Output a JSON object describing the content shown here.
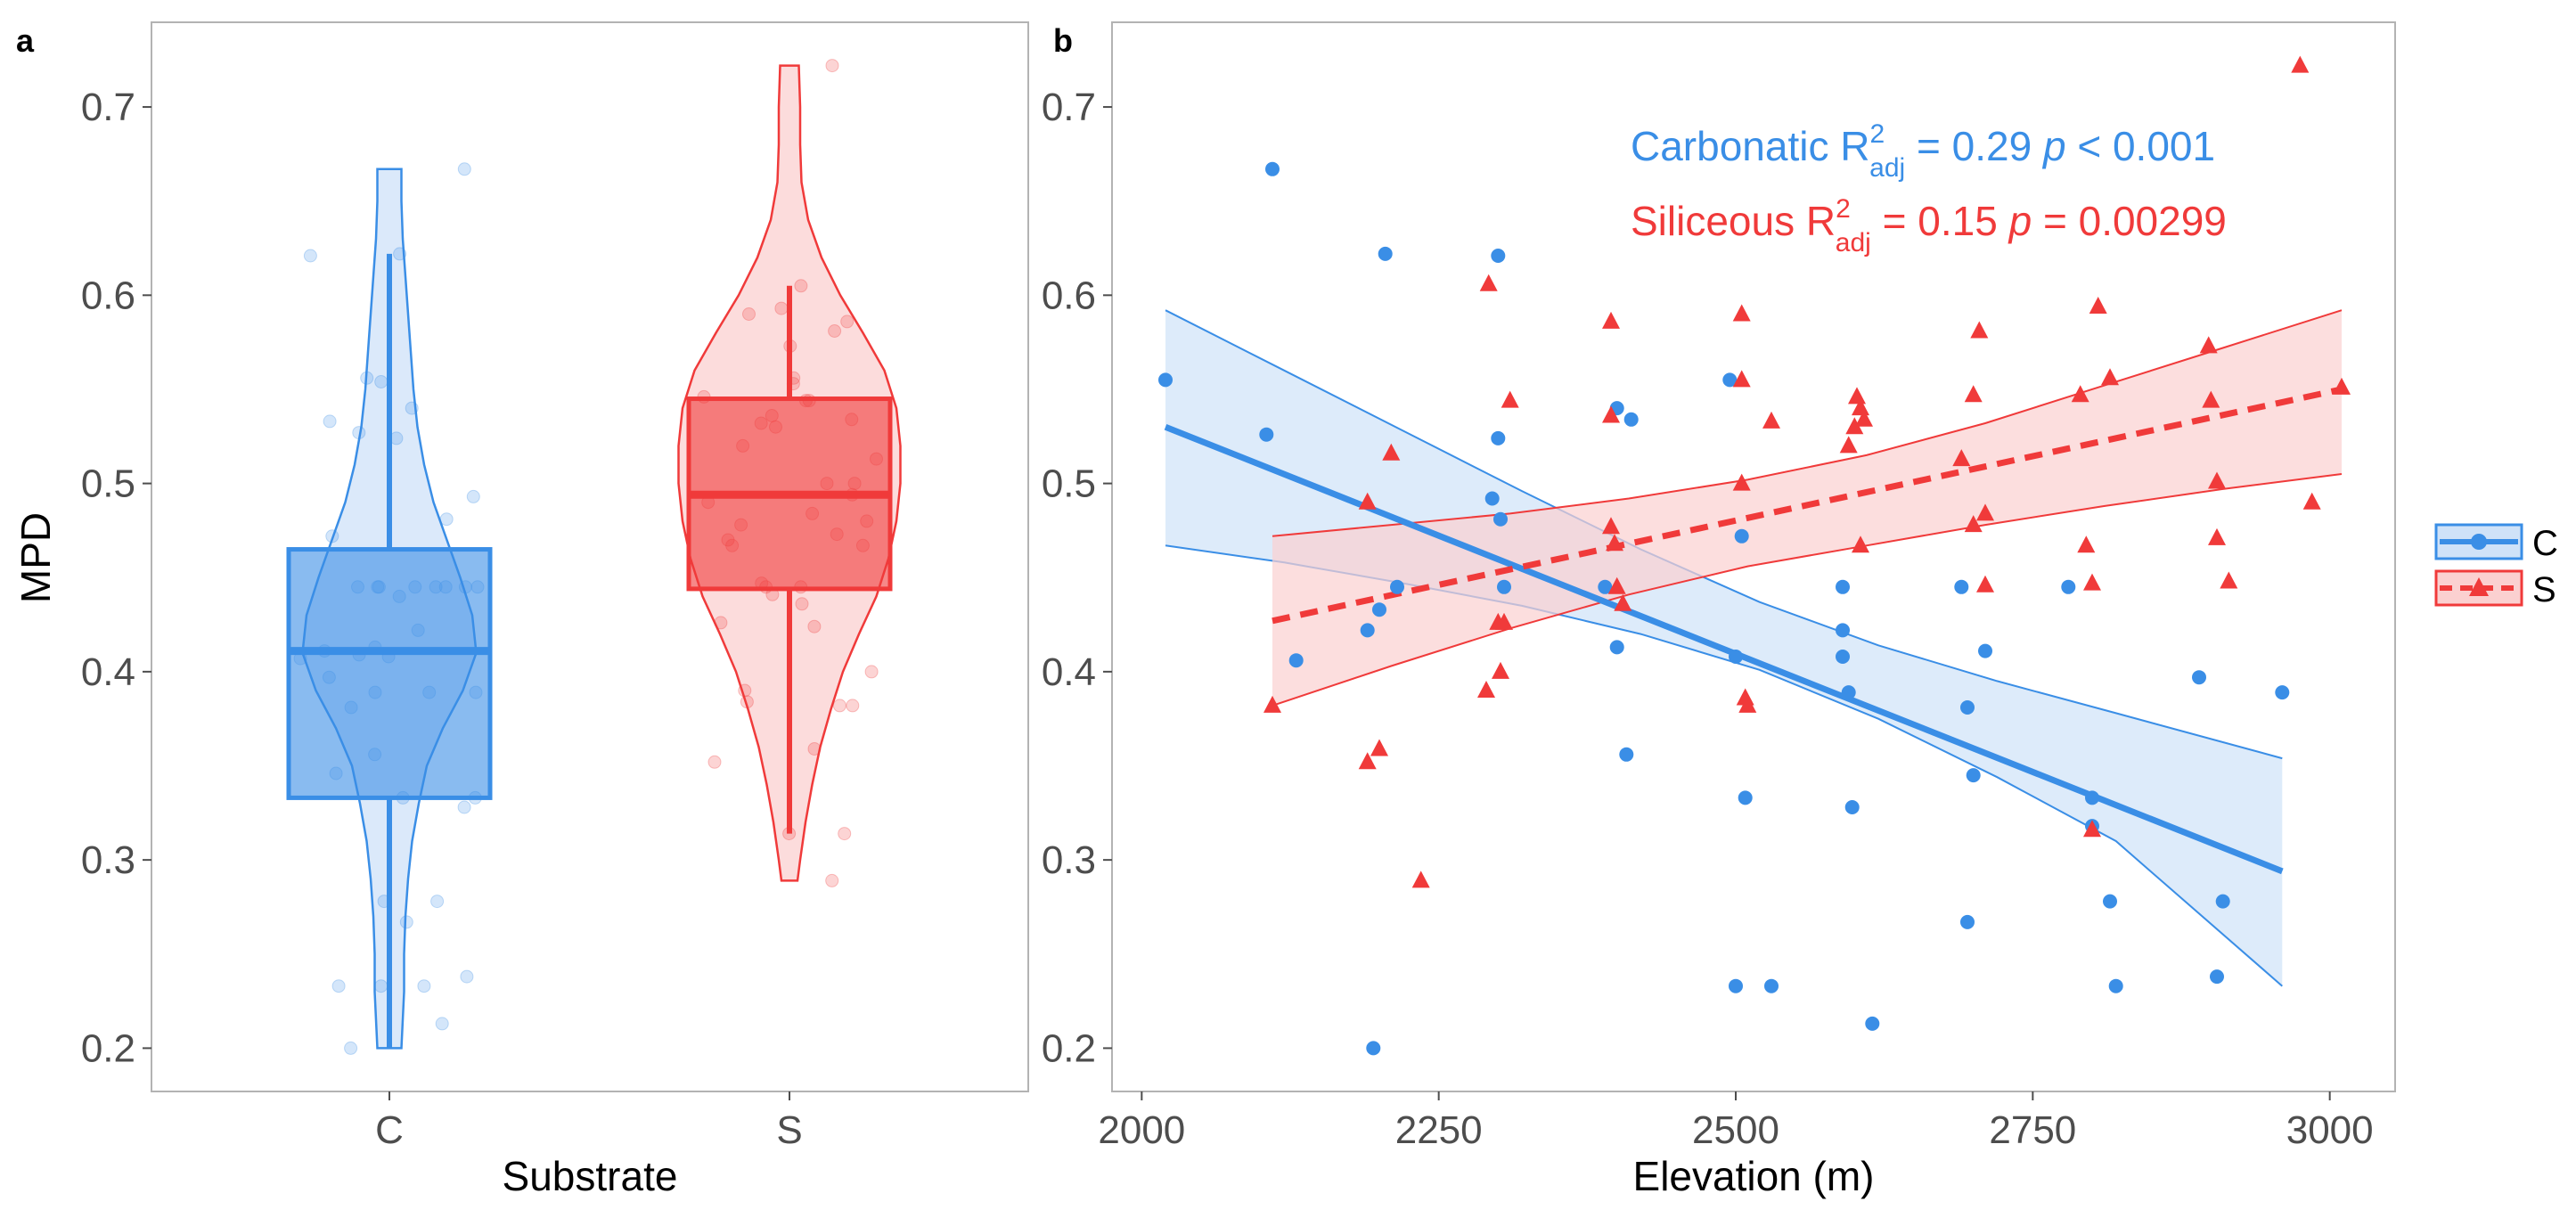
{
  "colors": {
    "C": "#3a8ee6",
    "S": "#f03a3a",
    "C_fill": "#cfe2f8",
    "S_fill": "#fbd0d0"
  },
  "chart_data": [
    {
      "panel": "a",
      "type": "violin+box",
      "xlabel": "Substrate",
      "ylabel": "MPD",
      "categories": [
        "C",
        "S"
      ],
      "ylim": [
        0.177,
        0.745
      ],
      "yticks": [
        "0.2",
        "0.3",
        "0.4",
        "0.5",
        "0.6",
        "0.7"
      ],
      "grid": false,
      "groups": [
        {
          "name": "C",
          "min": 0.2,
          "q1": 0.333,
          "median": 0.411,
          "q3": 0.465,
          "max": 0.622,
          "violin": {
            "y": [
              0.2,
              0.215,
              0.23,
              0.25,
              0.27,
              0.29,
              0.31,
              0.33,
              0.35,
              0.37,
              0.39,
              0.41,
              0.43,
              0.45,
              0.47,
              0.49,
              0.51,
              0.53,
              0.55,
              0.57,
              0.59,
              0.61,
              0.63,
              0.65,
              0.667
            ],
            "halfwidth": [
              0.09,
              0.1,
              0.11,
              0.11,
              0.12,
              0.14,
              0.17,
              0.22,
              0.28,
              0.4,
              0.55,
              0.65,
              0.62,
              0.53,
              0.43,
              0.33,
              0.26,
              0.21,
              0.18,
              0.16,
              0.14,
              0.12,
              0.1,
              0.09,
              0.09
            ]
          },
          "points": [
            0.667,
            0.621,
            0.622,
            0.556,
            0.554,
            0.54,
            0.533,
            0.527,
            0.524,
            0.493,
            0.481,
            0.472,
            0.445,
            0.445,
            0.445,
            0.445,
            0.445,
            0.445,
            0.445,
            0.445,
            0.44,
            0.422,
            0.413,
            0.411,
            0.409,
            0.408,
            0.407,
            0.397,
            0.389,
            0.389,
            0.389,
            0.381,
            0.356,
            0.346,
            0.333,
            0.333,
            0.328,
            0.278,
            0.278,
            0.267,
            0.238,
            0.233,
            0.233,
            0.233,
            0.213,
            0.2
          ]
        },
        {
          "name": "S",
          "min": 0.314,
          "q1": 0.444,
          "median": 0.494,
          "q3": 0.545,
          "max": 0.605,
          "violin": {
            "y": [
              0.289,
              0.3,
              0.32,
              0.34,
              0.36,
              0.38,
              0.4,
              0.42,
              0.44,
              0.46,
              0.48,
              0.5,
              0.52,
              0.54,
              0.56,
              0.58,
              0.6,
              0.62,
              0.64,
              0.66,
              0.68,
              0.7,
              0.722
            ],
            "halfwidth": [
              0.06,
              0.08,
              0.12,
              0.17,
              0.23,
              0.31,
              0.4,
              0.52,
              0.65,
              0.74,
              0.8,
              0.83,
              0.83,
              0.8,
              0.71,
              0.55,
              0.38,
              0.24,
              0.14,
              0.09,
              0.08,
              0.08,
              0.07
            ]
          },
          "points": [
            0.722,
            0.605,
            0.593,
            0.59,
            0.586,
            0.581,
            0.573,
            0.556,
            0.553,
            0.546,
            0.544,
            0.544,
            0.536,
            0.534,
            0.532,
            0.53,
            0.52,
            0.513,
            0.5,
            0.5,
            0.494,
            0.49,
            0.484,
            0.48,
            0.478,
            0.473,
            0.47,
            0.467,
            0.467,
            0.447,
            0.445,
            0.445,
            0.441,
            0.436,
            0.426,
            0.424,
            0.4,
            0.39,
            0.384,
            0.382,
            0.382,
            0.359,
            0.352,
            0.314,
            0.314,
            0.289
          ]
        }
      ]
    },
    {
      "panel": "b",
      "type": "scatter+regression",
      "xlabel": "Elevation (m)",
      "ylabel": "",
      "xlim": [
        1975,
        3055
      ],
      "ylim": [
        0.177,
        0.745
      ],
      "xticks": [
        "2000",
        "2250",
        "2500",
        "2750",
        "3000"
      ],
      "yticks": [
        "0.2",
        "0.3",
        "0.4",
        "0.5",
        "0.6",
        "0.7"
      ],
      "grid": false,
      "legend_position": "right",
      "series": [
        {
          "name": "C",
          "marker": "circle",
          "line": "solid",
          "fit": {
            "x": [
              2020,
              2960
            ],
            "y": [
              0.53,
              0.294
            ]
          },
          "ci_upper": [
            [
              2020,
              0.592
            ],
            [
              2120,
              0.56
            ],
            [
              2220,
              0.528
            ],
            [
              2320,
              0.496
            ],
            [
              2420,
              0.465
            ],
            [
              2520,
              0.437
            ],
            [
              2620,
              0.414
            ],
            [
              2720,
              0.395
            ],
            [
              2820,
              0.378
            ],
            [
              2960,
              0.354
            ]
          ],
          "ci_lower": [
            [
              2020,
              0.467
            ],
            [
              2120,
              0.458
            ],
            [
              2220,
              0.447
            ],
            [
              2320,
              0.435
            ],
            [
              2420,
              0.42
            ],
            [
              2520,
              0.401
            ],
            [
              2620,
              0.375
            ],
            [
              2720,
              0.344
            ],
            [
              2820,
              0.31
            ],
            [
              2960,
              0.233
            ]
          ],
          "points": [
            [
              2020,
              0.555
            ],
            [
              2105,
              0.526
            ],
            [
              2110,
              0.667
            ],
            [
              2130,
              0.406
            ],
            [
              2190,
              0.422
            ],
            [
              2195,
              0.2
            ],
            [
              2200,
              0.433
            ],
            [
              2205,
              0.622
            ],
            [
              2215,
              0.445
            ],
            [
              2300,
              0.621
            ],
            [
              2300,
              0.524
            ],
            [
              2295,
              0.492
            ],
            [
              2302,
              0.481
            ],
            [
              2305,
              0.445
            ],
            [
              2390,
              0.445
            ],
            [
              2400,
              0.54
            ],
            [
              2412,
              0.534
            ],
            [
              2400,
              0.413
            ],
            [
              2408,
              0.356
            ],
            [
              2495,
              0.555
            ],
            [
              2500,
              0.408
            ],
            [
              2505,
              0.472
            ],
            [
              2508,
              0.333
            ],
            [
              2500,
              0.233
            ],
            [
              2530,
              0.233
            ],
            [
              2590,
              0.445
            ],
            [
              2590,
              0.422
            ],
            [
              2590,
              0.408
            ],
            [
              2595,
              0.389
            ],
            [
              2598,
              0.328
            ],
            [
              2615,
              0.213
            ],
            [
              2690,
              0.445
            ],
            [
              2695,
              0.381
            ],
            [
              2700,
              0.345
            ],
            [
              2710,
              0.411
            ],
            [
              2695,
              0.267
            ],
            [
              2780,
              0.445
            ],
            [
              2800,
              0.333
            ],
            [
              2800,
              0.318
            ],
            [
              2815,
              0.278
            ],
            [
              2820,
              0.233
            ],
            [
              2890,
              0.397
            ],
            [
              2905,
              0.238
            ],
            [
              2910,
              0.278
            ],
            [
              2960,
              0.389
            ]
          ]
        },
        {
          "name": "S",
          "marker": "triangle",
          "line": "dashed",
          "fit": {
            "x": [
              2110,
              3010
            ],
            "y": [
              0.427,
              0.55
            ]
          },
          "ci_upper": [
            [
              2110,
              0.472
            ],
            [
              2210,
              0.478
            ],
            [
              2310,
              0.484
            ],
            [
              2410,
              0.492
            ],
            [
              2510,
              0.502
            ],
            [
              2610,
              0.515
            ],
            [
              2710,
              0.532
            ],
            [
              2810,
              0.552
            ],
            [
              2910,
              0.572
            ],
            [
              3010,
              0.592
            ]
          ],
          "ci_lower": [
            [
              2110,
              0.382
            ],
            [
              2210,
              0.403
            ],
            [
              2310,
              0.423
            ],
            [
              2410,
              0.441
            ],
            [
              2510,
              0.456
            ],
            [
              2610,
              0.467
            ],
            [
              2710,
              0.478
            ],
            [
              2810,
              0.488
            ],
            [
              2910,
              0.497
            ],
            [
              3010,
              0.505
            ]
          ],
          "points": [
            [
              2110,
              0.382
            ],
            [
              2190,
              0.352
            ],
            [
              2190,
              0.49
            ],
            [
              2200,
              0.359
            ],
            [
              2210,
              0.516
            ],
            [
              2235,
              0.289
            ],
            [
              2290,
              0.39
            ],
            [
              2292,
              0.606
            ],
            [
              2300,
              0.426
            ],
            [
              2305,
              0.426
            ],
            [
              2302,
              0.4
            ],
            [
              2310,
              0.544
            ],
            [
              2395,
              0.586
            ],
            [
              2395,
              0.536
            ],
            [
              2395,
              0.477
            ],
            [
              2398,
              0.468
            ],
            [
              2400,
              0.445
            ],
            [
              2405,
              0.436
            ],
            [
              2505,
              0.59
            ],
            [
              2505,
              0.555
            ],
            [
              2505,
              0.5
            ],
            [
              2508,
              0.386
            ],
            [
              2510,
              0.382
            ],
            [
              2530,
              0.533
            ],
            [
              2595,
              0.52
            ],
            [
              2600,
              0.53
            ],
            [
              2602,
              0.546
            ],
            [
              2605,
              0.54
            ],
            [
              2608,
              0.534
            ],
            [
              2605,
              0.467
            ],
            [
              2690,
              0.513
            ],
            [
              2700,
              0.547
            ],
            [
              2705,
              0.581
            ],
            [
              2700,
              0.478
            ],
            [
              2710,
              0.484
            ],
            [
              2710,
              0.446
            ],
            [
              2790,
              0.547
            ],
            [
              2795,
              0.467
            ],
            [
              2800,
              0.447
            ],
            [
              2800,
              0.316
            ],
            [
              2805,
              0.594
            ],
            [
              2815,
              0.556
            ],
            [
              2898,
              0.573
            ],
            [
              2900,
              0.544
            ],
            [
              2905,
              0.501
            ],
            [
              2905,
              0.471
            ],
            [
              2915,
              0.448
            ],
            [
              2975,
              0.722
            ],
            [
              2985,
              0.49
            ],
            [
              3010,
              0.551
            ]
          ]
        }
      ],
      "annotations": [
        {
          "label": "Carbonatic",
          "r2_value": "= 0.29",
          "p_label": "p",
          "p_value": "< 0.001"
        },
        {
          "label": "Siliceous",
          "r2_value": "= 0.15",
          "p_label": "p",
          "p_value": "= 0.00299"
        }
      ],
      "r2_symbol": "R",
      "r2_sup": "2",
      "r2_sub": "adj"
    }
  ],
  "legend": {
    "items": [
      "C",
      "S"
    ]
  }
}
